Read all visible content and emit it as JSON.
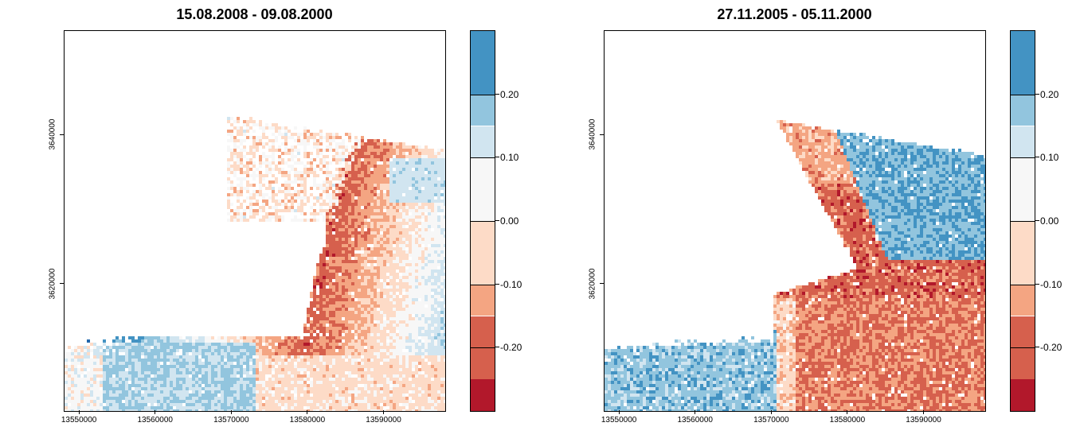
{
  "palette": [
    "#b2182b",
    "#d6604d",
    "#f4a582",
    "#fddbc7",
    "#f7f7f7",
    "#d1e5f0",
    "#92c5de",
    "#4393c3",
    "#2166ac"
  ],
  "colorbar": {
    "min": -0.3,
    "max": 0.3,
    "breaks": [
      -0.3,
      -0.25,
      -0.2,
      -0.15,
      -0.1,
      -0.05,
      0.0,
      0.05,
      0.1,
      0.15,
      0.2,
      0.25,
      0.3
    ],
    "tick_values": [
      -0.2,
      -0.1,
      0.0,
      0.1,
      0.2
    ],
    "tick_labels": [
      "-0.20",
      "-0.10",
      "0.00",
      "0.10",
      "0.20"
    ],
    "segment_colors": [
      "#b2182b",
      "#d6604d",
      "#d6604d",
      "#f4a582",
      "#fddbc7",
      "#fddbc7",
      "#f7f7f7",
      "#f7f7f7",
      "#d1e5f0",
      "#92c5de",
      "#4393c3",
      "#4393c3",
      "#2166ac"
    ]
  },
  "axes": {
    "x_ticks": [
      13550000,
      13560000,
      13570000,
      13580000,
      13590000
    ],
    "x_tick_labels": [
      "13550000",
      "13560000",
      "13570000",
      "13580000",
      "13590000"
    ],
    "y_ticks": [
      3620000,
      3640000
    ],
    "y_tick_labels": [
      "3620000",
      "3640000"
    ],
    "xlim": [
      13548000,
      13598000
    ],
    "ylim": [
      3603000,
      3654000
    ]
  },
  "panels": [
    {
      "title": "15.08.2008 - 09.08.2000",
      "pattern": "2008"
    },
    {
      "title": "27.11.2005 - 05.11.2000",
      "pattern": "2005"
    }
  ]
}
